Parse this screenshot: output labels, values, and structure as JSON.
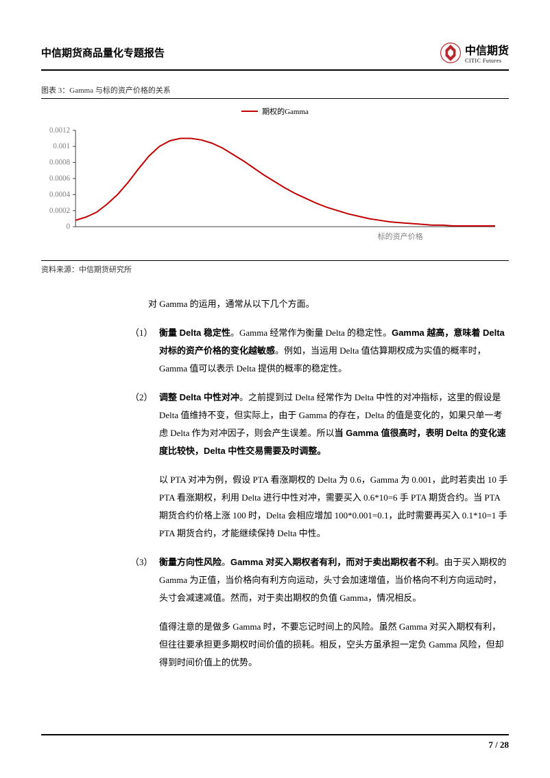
{
  "header": {
    "title": "中信期货商品量化专题报告",
    "logo_cn": "中信期货",
    "logo_en": "CITIC Futures",
    "logo_color": "#b8292f"
  },
  "chart": {
    "type": "line",
    "title_prefix": "图表 3：",
    "title": "Gamma 与标的资产价格的关系",
    "legend_label": "期权的Gamma",
    "x_label": "标的资产价格",
    "source": "资料来源：中信期货研究所",
    "line_color": "#c00000",
    "line_width": 2,
    "axis_color": "#404040",
    "label_color": "#808080",
    "background_color": "#ffffff",
    "label_fontsize": 11,
    "ylim": [
      0,
      0.0012
    ],
    "yticks": [
      0,
      0.0002,
      0.0004,
      0.0006,
      0.0008,
      0.001,
      0.0012
    ],
    "ytick_labels": [
      "0",
      "0.0002",
      "0.0004",
      "0.0006",
      "0.0008",
      "0.001",
      "0.0012"
    ],
    "xlim": [
      0,
      200
    ],
    "x_values": [
      0,
      5,
      10,
      15,
      20,
      25,
      30,
      35,
      40,
      45,
      50,
      55,
      60,
      65,
      70,
      75,
      80,
      85,
      90,
      95,
      100,
      105,
      110,
      115,
      120,
      125,
      130,
      135,
      140,
      145,
      150,
      155,
      160,
      165,
      170,
      175,
      180,
      185,
      190,
      195,
      200
    ],
    "y_values": [
      8e-05,
      0.00012,
      0.00018,
      0.00028,
      0.0004,
      0.00055,
      0.00072,
      0.00088,
      0.001,
      0.00107,
      0.0011,
      0.0011,
      0.00108,
      0.00104,
      0.00098,
      0.0009,
      0.00082,
      0.00073,
      0.00064,
      0.00056,
      0.00048,
      0.00041,
      0.00035,
      0.00029,
      0.00024,
      0.0002,
      0.00016,
      0.00013,
      0.0001,
      8e-05,
      6e-05,
      5e-05,
      4e-05,
      3e-05,
      2e-05,
      2e-05,
      1e-05,
      1e-05,
      1e-05,
      1e-05,
      1e-05
    ]
  },
  "body": {
    "intro": "对 Gamma 的运用，通常从以下几个方面。",
    "items": [
      {
        "num": "（1）",
        "bold_lead": "衡量 Delta 稳定性",
        "text1": "。Gamma 经常作为衡量 Delta 的稳定性。",
        "bold_mid": "Gamma 越高，意味着 Delta 对标的资产价格的变化越敏感",
        "text2": "。例如，当运用 Delta 值估算期权成为实值的概率时，Gamma 值可以表示 Delta 提供的概率的稳定性。"
      },
      {
        "num": "（2）",
        "bold_lead": "调整 Delta 中性对冲",
        "text1": "。之前提到过 Delta 经常作为 Delta 中性的对冲指标，这里的假设是 Delta 值维持不变，但实际上，由于 Gamma 的存在，Delta 的值是变化的，如果只单一考虑 Delta 作为对冲因子，则会产生误差。所以",
        "bold_mid": "当 Gamma 值很高时，表明 Delta 的变化速度比较快，Delta 中性交易需要及时调整。",
        "text2": "",
        "sub": "以 PTA 对冲为例，假设 PTA 看涨期权的 Delta 为 0.6，Gamma 为 0.001，此时若卖出 10 手 PTA 看涨期权，利用 Delta 进行中性对冲，需要买入 0.6*10=6 手 PTA 期货合约。当 PTA 期货合约价格上涨 100 时，Delta 会相应增加 100*0.001=0.1，此时需要再买入 0.1*10=1 手 PTA 期货合约，才能继续保持 Delta 中性。"
      },
      {
        "num": "（3）",
        "bold_lead": "衡量方向性风险",
        "text1": "。",
        "bold_mid": "Gamma 对买入期权者有利，而对于卖出期权者不利",
        "text2": "。由于买入期权的 Gamma 为正值，当价格向有利方向运动，头寸会加速增值，当价格向不利方向运动时，头寸会减速减值。然而，对于卖出期权的负值 Gamma，情况相反。",
        "sub": "值得注意的是做多 Gamma 时，不要忘记时间上的风险。虽然 Gamma 对买入期权有利，但往往要承担更多期权时间价值的损耗。相反，空头方虽承担一定负 Gamma 风险，但却得到时间价值上的优势。"
      }
    ]
  },
  "footer": {
    "page": "7",
    "sep": " / ",
    "total": "28"
  }
}
